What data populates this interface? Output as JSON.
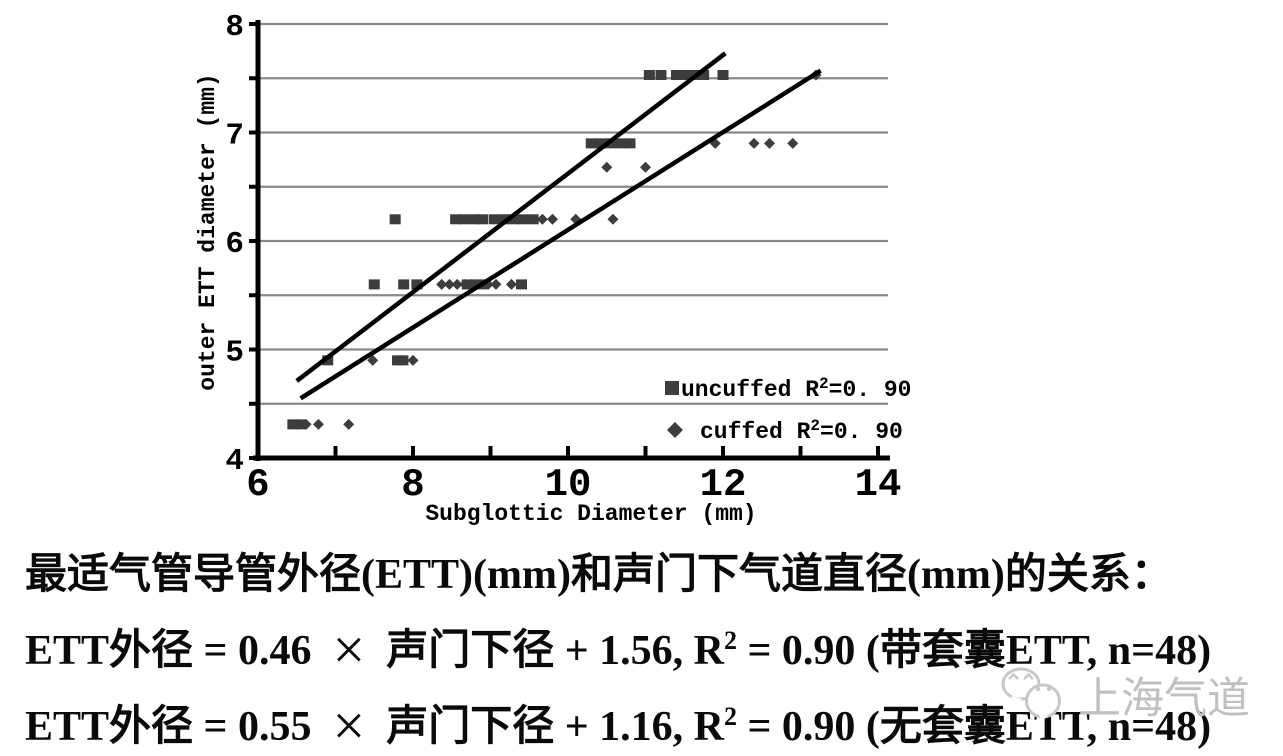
{
  "chart_data": {
    "type": "scatter",
    "xlabel": "Subglottic Diameter (mm)",
    "ylabel": "outer ETT diameter (mm)",
    "xlim": [
      6,
      14
    ],
    "ylim": [
      4,
      8
    ],
    "xticks": [
      6,
      7,
      8,
      9,
      10,
      11,
      12,
      13,
      14
    ],
    "xtick_labeled": [
      6,
      8,
      10,
      12,
      14
    ],
    "yticks": [
      4,
      4.5,
      5,
      5.5,
      6,
      6.5,
      7,
      7.5,
      8
    ],
    "ytick_labeled": [
      4,
      5,
      6,
      7,
      8
    ],
    "gridlines_y": [
      4.5,
      5,
      5.5,
      6,
      6.5,
      7,
      7.5,
      8
    ],
    "grid_color": "#898989",
    "point_color": "#3d3d3d",
    "series": [
      {
        "name": "uncuffed",
        "marker": "square",
        "legend": {
          "pre": "uncuffed R",
          "sup": "2",
          "post": "=0. 90"
        },
        "fit_line": {
          "slope": 0.55,
          "intercept": 1.16,
          "draw": [
            [
              6.5,
              4.71
            ],
            [
              12.03,
              7.73
            ]
          ]
        },
        "points": [
          [
            11.05,
            7.53
          ],
          [
            11.2,
            7.53
          ],
          [
            11.4,
            7.53
          ],
          [
            11.5,
            7.53
          ],
          [
            11.62,
            7.53
          ],
          [
            11.75,
            7.53
          ],
          [
            12.0,
            7.53
          ],
          [
            10.3,
            6.9
          ],
          [
            10.42,
            6.9
          ],
          [
            10.55,
            6.9
          ],
          [
            10.68,
            6.9
          ],
          [
            10.8,
            6.9
          ],
          [
            7.77,
            6.2
          ],
          [
            8.55,
            6.2
          ],
          [
            8.67,
            6.2
          ],
          [
            8.8,
            6.2
          ],
          [
            8.9,
            6.2
          ],
          [
            9.05,
            6.2
          ],
          [
            9.17,
            6.2
          ],
          [
            9.3,
            6.2
          ],
          [
            9.42,
            6.2
          ],
          [
            9.55,
            6.2
          ],
          [
            7.5,
            5.6
          ],
          [
            7.88,
            5.6
          ],
          [
            8.05,
            5.6
          ],
          [
            8.7,
            5.6
          ],
          [
            8.8,
            5.6
          ],
          [
            8.9,
            5.6
          ],
          [
            9.4,
            5.6
          ],
          [
            6.9,
            4.9
          ],
          [
            7.8,
            4.9
          ],
          [
            7.87,
            4.9
          ],
          [
            6.45,
            4.31
          ],
          [
            6.55,
            4.31
          ]
        ]
      },
      {
        "name": "cuffed",
        "marker": "diamond",
        "legend": {
          "pre": "cuffed R",
          "sup": "2",
          "post": "=0. 90"
        },
        "fit_line": {
          "slope": 0.46,
          "intercept": 1.56,
          "draw": [
            [
              6.55,
              4.55
            ],
            [
              13.26,
              7.57
            ]
          ]
        },
        "points": [
          [
            13.2,
            7.53
          ],
          [
            11.9,
            6.9
          ],
          [
            12.4,
            6.9
          ],
          [
            12.6,
            6.9
          ],
          [
            12.9,
            6.9
          ],
          [
            10.5,
            6.68
          ],
          [
            11.0,
            6.68
          ],
          [
            9.67,
            6.2
          ],
          [
            9.8,
            6.2
          ],
          [
            10.1,
            6.2
          ],
          [
            10.58,
            6.2
          ],
          [
            8.37,
            5.6
          ],
          [
            8.47,
            5.6
          ],
          [
            8.57,
            5.6
          ],
          [
            8.67,
            5.6
          ],
          [
            8.97,
            5.6
          ],
          [
            9.07,
            5.6
          ],
          [
            9.27,
            5.6
          ],
          [
            7.48,
            4.9
          ],
          [
            8.0,
            4.9
          ],
          [
            6.62,
            4.31
          ],
          [
            6.78,
            4.31
          ],
          [
            7.17,
            4.31
          ]
        ]
      }
    ]
  },
  "caption": {
    "line1": "最适气管导管外径(ETT)(mm)和声门下气道直径(mm)的关系：",
    "line2": {
      "a": "ETT外径 = 0.46",
      "times": "×",
      "b": "声门下径 + 1.56, R",
      "sup": "2",
      "c": " = 0.90 (带套囊ETT, n=48)"
    },
    "line3": {
      "a": "ETT外径 = 0.55",
      "times": "×",
      "b": "声门下径 + 1.16, R",
      "sup": "2",
      "c": " = 0.90 (无套囊ETT, n=48)"
    }
  },
  "watermark": {
    "text": "上海气道",
    "icon": "wechat-icon",
    "color": "#c0c0c0"
  }
}
